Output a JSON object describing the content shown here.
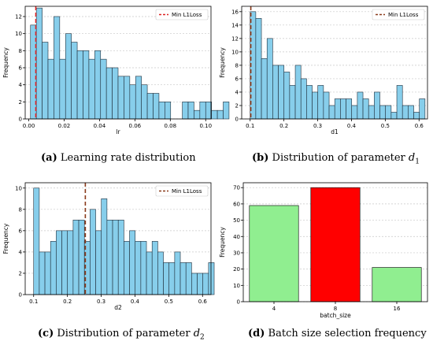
{
  "colors": {
    "hist_fill": "#87ceeb",
    "hist_edge": "#1f2d3a",
    "min_line_a": "#dd2222",
    "min_line_other": "#8a3a1a",
    "bar_green": "#90ee90",
    "bar_red": "#ff0000",
    "grid": "#c8c8c8"
  },
  "captions": [
    {
      "letter": "(a)",
      "text": "Learning rate distribution",
      "param": "",
      "sub": ""
    },
    {
      "letter": "(b)",
      "text": "Distribution of parameter ",
      "param": "d",
      "sub": "1"
    },
    {
      "letter": "(c)",
      "text": "Distribution of parameter ",
      "param": "d",
      "sub": "2"
    },
    {
      "letter": "(d)",
      "text": "Batch size selection frequency",
      "param": "",
      "sub": ""
    }
  ],
  "chart_data": [
    {
      "type": "bar",
      "xlabel": "lr",
      "ylabel": "Frequency",
      "legend": "Min L1Loss",
      "legend_position": "top-right",
      "grid": "y dashed",
      "xlim": [
        -0.002,
        0.103
      ],
      "ylim": [
        0,
        13.2
      ],
      "xticks": [
        "0.00",
        "0.02",
        "0.04",
        "0.06",
        "0.08",
        "0.10"
      ],
      "xtick_values": [
        0,
        0.02,
        0.04,
        0.06,
        0.08,
        0.1
      ],
      "yticks": [
        0,
        2,
        4,
        6,
        8,
        10,
        12
      ],
      "bin_start": 0.001,
      "bin_width": 0.0033,
      "values": [
        11,
        13,
        9,
        7,
        12,
        7,
        10,
        9,
        8,
        8,
        7,
        8,
        7,
        6,
        6,
        5,
        5,
        4,
        5,
        4,
        3,
        3,
        2,
        2,
        0,
        0,
        2,
        2,
        1,
        2,
        2,
        1,
        1,
        2
      ],
      "min_line_x": 0.004
    },
    {
      "type": "bar",
      "xlabel": "d1",
      "ylabel": "Frequency",
      "legend": "Min L1Loss",
      "legend_position": "top-right",
      "grid": "y dashed",
      "xlim": [
        0.075,
        0.625
      ],
      "ylim": [
        0,
        16.8
      ],
      "xticks": [
        "0.1",
        "0.2",
        "0.3",
        "0.4",
        "0.5",
        "0.6"
      ],
      "xtick_values": [
        0.1,
        0.2,
        0.3,
        0.4,
        0.5,
        0.6
      ],
      "yticks": [
        0,
        2,
        4,
        6,
        8,
        10,
        12,
        14,
        16
      ],
      "bin_start": 0.1,
      "bin_width": 0.0167,
      "values": [
        16,
        15,
        9,
        12,
        8,
        8,
        7,
        5,
        8,
        6,
        5,
        4,
        5,
        4,
        2,
        3,
        3,
        3,
        2,
        4,
        3,
        2,
        4,
        2,
        2,
        1,
        5,
        2,
        2,
        1,
        3
      ],
      "min_line_x": 0.102
    },
    {
      "type": "bar",
      "xlabel": "d2",
      "ylabel": "Frequency",
      "legend": "Min L1Loss",
      "legend_position": "top-right",
      "grid": "y dashed",
      "xlim": [
        0.075,
        0.625
      ],
      "ylim": [
        0,
        10.5
      ],
      "xticks": [
        "0.1",
        "0.2",
        "0.3",
        "0.4",
        "0.5",
        "0.6"
      ],
      "xtick_values": [
        0.1,
        0.2,
        0.3,
        0.4,
        0.5,
        0.6
      ],
      "yticks": [
        0,
        2,
        4,
        6,
        8,
        10
      ],
      "bin_start": 0.1,
      "bin_width": 0.0167,
      "values": [
        10,
        4,
        4,
        5,
        6,
        6,
        6,
        7,
        7,
        5,
        8,
        6,
        9,
        7,
        7,
        7,
        5,
        6,
        5,
        5,
        4,
        5,
        4,
        3,
        3,
        4,
        3,
        3,
        2,
        2,
        2,
        3
      ],
      "min_line_x": 0.253
    },
    {
      "type": "bar",
      "xlabel": "batch_size",
      "ylabel": "Frequency",
      "grid": "y dashed",
      "categories": [
        "4",
        "8",
        "16"
      ],
      "values": [
        59,
        70,
        21
      ],
      "highlight": "8",
      "ylim": [
        0,
        73
      ],
      "yticks": [
        0,
        10,
        20,
        30,
        40,
        50,
        60,
        70
      ]
    }
  ]
}
